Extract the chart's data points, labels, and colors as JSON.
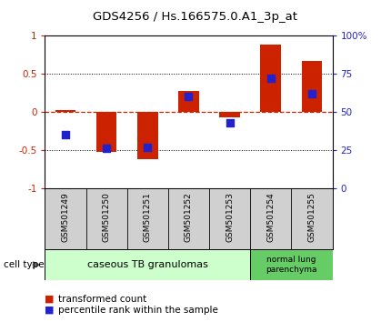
{
  "title": "GDS4256 / Hs.166575.0.A1_3p_at",
  "samples": [
    "GSM501249",
    "GSM501250",
    "GSM501251",
    "GSM501252",
    "GSM501253",
    "GSM501254",
    "GSM501255"
  ],
  "transformed_count": [
    0.02,
    -0.52,
    -0.62,
    0.27,
    -0.07,
    0.88,
    0.67
  ],
  "percentile_rank": [
    35,
    26,
    27,
    60,
    43,
    72,
    62
  ],
  "ylim_left": [
    -1,
    1
  ],
  "ylim_right": [
    0,
    100
  ],
  "yticks_left": [
    -1,
    -0.5,
    0,
    0.5,
    1
  ],
  "yticks_right": [
    0,
    25,
    50,
    75,
    100
  ],
  "ytick_labels_left": [
    "-1",
    "-0.5",
    "0",
    "0.5",
    "1"
  ],
  "ytick_labels_right": [
    "0",
    "25",
    "50",
    "75",
    "100%"
  ],
  "bar_color": "#cc2200",
  "dot_color": "#2222cc",
  "hline_color": "#cc2200",
  "sample_box_color": "#d0d0d0",
  "group1_label": "caseous TB granulomas",
  "group2_label": "normal lung\nparenchyma",
  "group1_color": "#ccffcc",
  "group2_color": "#66cc66",
  "group1_samples": 5,
  "group2_samples": 2,
  "legend_tc": "transformed count",
  "legend_pr": "percentile rank within the sample",
  "cell_type_label": "cell type",
  "bar_width": 0.5,
  "dot_size": 30,
  "title_fontsize": 9.5,
  "axis_fontsize": 7.5,
  "sample_fontsize": 6.5,
  "legend_fontsize": 7.5
}
